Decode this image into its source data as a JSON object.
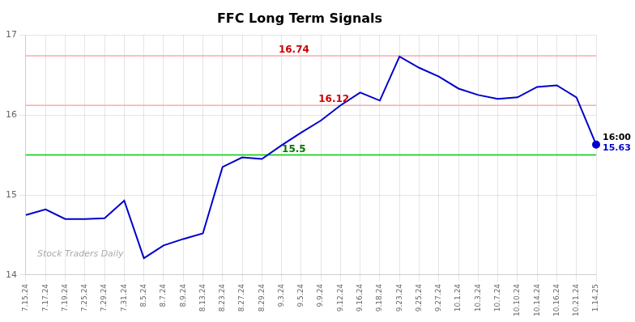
{
  "chart_data": {
    "type": "line",
    "title": "FFC Long Term Signals",
    "categories": [
      "7.15.24",
      "7.17.24",
      "7.19.24",
      "7.25.24",
      "7.29.24",
      "7.31.24",
      "8.5.24",
      "8.7.24",
      "8.9.24",
      "8.13.24",
      "8.23.24",
      "8.27.24",
      "8.29.24",
      "9.3.24",
      "9.5.24",
      "9.9.24",
      "9.12.24",
      "9.16.24",
      "9.18.24",
      "9.23.24",
      "9.25.24",
      "9.27.24",
      "10.1.24",
      "10.3.24",
      "10.7.24",
      "10.10.24",
      "10.14.24",
      "10.16.24",
      "10.21.24",
      "1.14.25"
    ],
    "values": [
      14.75,
      14.82,
      14.7,
      14.7,
      14.71,
      14.93,
      14.21,
      14.37,
      14.45,
      14.52,
      15.35,
      15.47,
      15.45,
      15.62,
      15.78,
      15.93,
      16.12,
      16.28,
      16.18,
      16.73,
      16.59,
      16.48,
      16.33,
      16.25,
      16.2,
      16.22,
      16.35,
      16.37,
      16.22,
      15.63
    ],
    "color": "#0000cc",
    "ylim": [
      14,
      17
    ],
    "yticks": [
      14,
      15,
      16,
      17
    ],
    "grid": true,
    "reference_lines": [
      {
        "value": 16.74,
        "label": "16.74",
        "color": "#ffaaaa",
        "label_color": "#cc0000"
      },
      {
        "value": 16.12,
        "label": "16.12",
        "color": "#ffaaaa",
        "label_color": "#cc0000"
      },
      {
        "value": 15.5,
        "label": "15.5",
        "color": "#00cc00",
        "label_color": "#007700"
      }
    ],
    "annotations": [
      {
        "text": "16:00",
        "x": "1.14.25",
        "y": 15.63,
        "color": "#000000"
      },
      {
        "text": "15.63",
        "x": "1.14.25",
        "y": 15.63,
        "color": "#0000cc"
      },
      {
        "text": "Stock Traders Daily",
        "color": "#aaaaaa"
      }
    ]
  }
}
